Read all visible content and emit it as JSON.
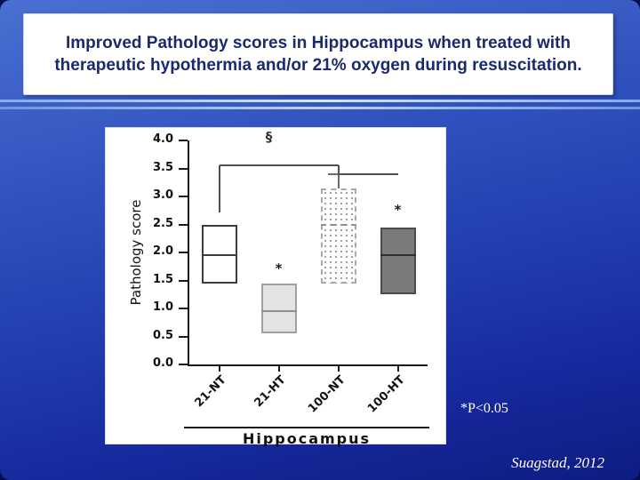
{
  "slide": {
    "title": "Improved Pathology scores in Hippocampus when treated with therapeutic hypothermia and/or 21% oxygen during resuscitation.",
    "p_note": "*P<0.05",
    "citation": "Suagstad, 2012",
    "colors": {
      "background_top": "#4a70d2",
      "background_bottom": "#0e1c82",
      "title_text": "#1b2a6e",
      "title_box_bg": "#fffffd",
      "note_text": "#ffffff"
    }
  },
  "chart_data": {
    "type": "boxplot",
    "title": "",
    "ylabel": "Pathology score",
    "xlabel": "Hippocampus",
    "ylim": [
      0.0,
      4.0
    ],
    "yticks": [
      4.0,
      3.5,
      3.0,
      2.5,
      2.0,
      1.5,
      1.0,
      0.5,
      0.0
    ],
    "categories": [
      "21-NT",
      "21-HT",
      "100-NT",
      "100-HT"
    ],
    "grid": false,
    "legend": "none",
    "series": [
      {
        "name": "21-NT",
        "q1": 1.45,
        "median": 1.95,
        "q3": 2.5,
        "style": "white"
      },
      {
        "name": "21-HT",
        "q1": 0.55,
        "median": 0.95,
        "q3": 1.45,
        "style": "light",
        "annotation": {
          "text": "*",
          "value": 1.7
        }
      },
      {
        "name": "100-NT",
        "q1": 1.45,
        "median": 2.5,
        "q3": 3.15,
        "whisker_high": 3.4,
        "style": "stipple"
      },
      {
        "name": "100-HT",
        "q1": 1.25,
        "median": 1.95,
        "q3": 2.45,
        "style": "dark",
        "annotation": {
          "text": "*",
          "value": 2.75
        }
      }
    ],
    "significance": {
      "symbol": "§",
      "symbol_x_frac": 0.35,
      "symbol_value": 4.05,
      "segments": [
        {
          "type": "h",
          "x1_frac": 0.125,
          "x2_frac": 0.625,
          "value": 3.55
        },
        {
          "type": "v",
          "x_frac": 0.125,
          "v1": 2.72,
          "v2": 3.55
        },
        {
          "type": "v",
          "x_frac": 0.625,
          "v1": 3.4,
          "v2": 3.55
        },
        {
          "type": "h",
          "x1_frac": 0.625,
          "x2_frac": 0.875,
          "value": 3.4
        }
      ]
    }
  }
}
